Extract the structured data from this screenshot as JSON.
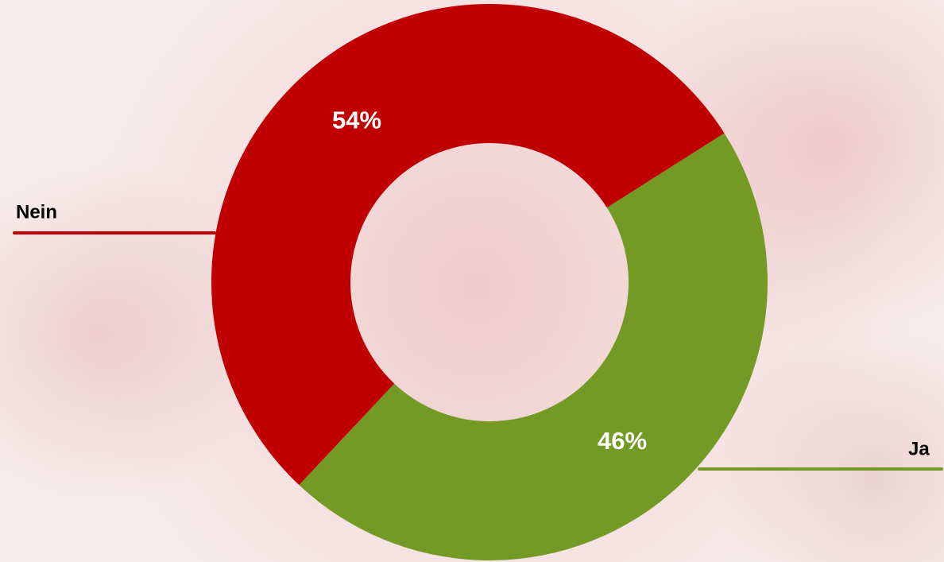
{
  "chart_data": {
    "type": "donut",
    "categories": [
      "Ja",
      "Nein"
    ],
    "values": [
      46,
      54
    ],
    "value_labels": [
      "46%",
      "54%"
    ],
    "colors": [
      "#739a24",
      "#c00000"
    ]
  }
}
